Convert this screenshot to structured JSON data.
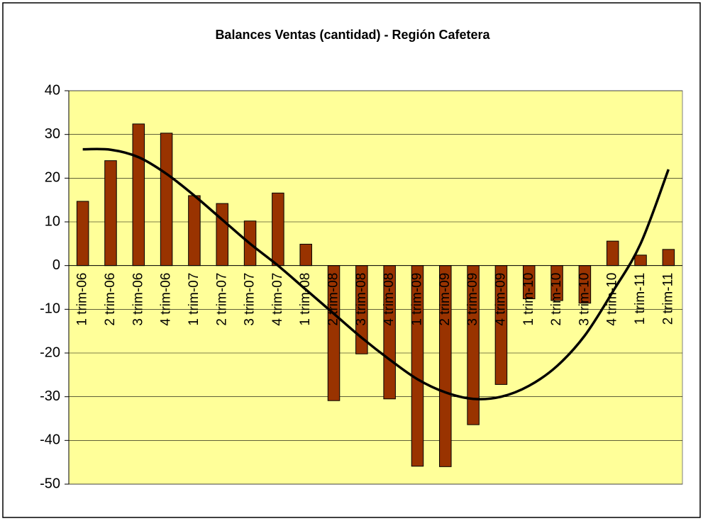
{
  "chart_data": {
    "type": "bar",
    "title": "Balances Ventas (cantidad) - Región Cafetera",
    "categories": [
      "1 trim-06",
      "2 trim-06",
      "3 trim-06",
      "4 trim-06",
      "1 trim-07",
      "2 trim-07",
      "3 trim-07",
      "4 trim-07",
      "1 trim-08",
      "2 trim-08",
      "3 trim-08",
      "4 trim-08",
      "1 trim-09",
      "2 trim-09",
      "3 trim-09",
      "4 trim-09",
      "1 trim-10",
      "2 trim-10",
      "3 trim-10",
      "4 trim-10",
      "1 trim-11",
      "2 trim-11"
    ],
    "values": [
      14.7,
      24,
      32.4,
      30.3,
      16,
      14.2,
      10.2,
      16.6,
      4.9,
      -30.9,
      -20.2,
      -30.5,
      -45.9,
      -46,
      -36.4,
      -27.2,
      -7.6,
      -8,
      -8.6,
      5.6,
      2.4,
      3.7
    ],
    "color": "#993300",
    "trendline": {
      "color": "#000000",
      "values": [
        26.6,
        26.5,
        24.8,
        21,
        16,
        10.5,
        5,
        0,
        -5.5,
        -11,
        -16.5,
        -21.5,
        -26,
        -29,
        -30.5,
        -30,
        -27.5,
        -23,
        -16,
        -6,
        5,
        22
      ]
    },
    "ylim": [
      -50,
      40
    ],
    "yticks": [
      -50,
      -40,
      -30,
      -20,
      -10,
      0,
      10,
      20,
      30,
      40
    ],
    "grid": true,
    "background": "#ffff99"
  }
}
